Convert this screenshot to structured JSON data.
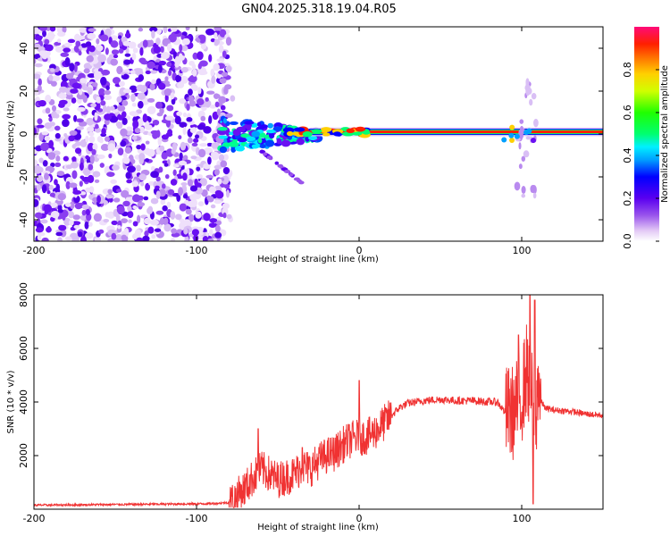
{
  "title": "GN04.2025.318.19.04.R05",
  "chart_data": [
    {
      "type": "heatmap",
      "name": "spectrogram",
      "xlabel": "Height of straight line (km)",
      "ylabel": "Frequency (Hz)",
      "xlim": [
        -200,
        150
      ],
      "ylim": [
        -50,
        50
      ],
      "xticks": [
        -200,
        -100,
        0,
        100
      ],
      "yticks": [
        -40,
        -20,
        0,
        20,
        40
      ],
      "colorbar": {
        "label": "Normalized spectral amplitude",
        "range": [
          0,
          1
        ],
        "ticks": [
          0.0,
          0.2,
          0.4,
          0.6,
          0.8
        ],
        "tick_labels": [
          "0.0",
          "0.2",
          "0.4",
          "0.6",
          "0.8"
        ]
      },
      "features": [
        {
          "region": "noise",
          "x_range": [
            -200,
            -80
          ],
          "frequency_range": [
            -50,
            50
          ],
          "amplitude": "low (0.1-0.3)"
        },
        {
          "region": "transition",
          "x_range": [
            -80,
            -30
          ],
          "center_frequency": 0,
          "spread_hz": 8,
          "amplitude": "0.2-0.5"
        },
        {
          "region": "main tone",
          "x_range": [
            -30,
            150
          ],
          "center_frequency": 1,
          "amplitude": "0.8-1.0"
        },
        {
          "region": "disturbance",
          "x_range": [
            95,
            110
          ],
          "frequency_range": [
            -30,
            25
          ]
        }
      ]
    },
    {
      "type": "line",
      "name": "snr",
      "xlabel": "Height of straight line (km)",
      "ylabel": "SNR (10 * v/v)",
      "xlim": [
        -200,
        150
      ],
      "ylim": [
        0,
        8000
      ],
      "xticks": [
        -200,
        -100,
        0,
        100
      ],
      "yticks": [
        2000,
        4000,
        6000,
        8000
      ],
      "series": [
        {
          "name": "SNR",
          "color": "#f03232",
          "x": [
            -200,
            -180,
            -160,
            -140,
            -120,
            -100,
            -90,
            -80,
            -75,
            -70,
            -65,
            -60,
            -55,
            -50,
            -45,
            -40,
            -35,
            -30,
            -25,
            -20,
            -15,
            -10,
            -5,
            0,
            5,
            10,
            15,
            20,
            25,
            30,
            40,
            50,
            60,
            70,
            80,
            85,
            90,
            95,
            100,
            103,
            106,
            108,
            110,
            112,
            115,
            120,
            130,
            140,
            150
          ],
          "y": [
            150,
            160,
            170,
            180,
            190,
            200,
            210,
            250,
            500,
            800,
            1200,
            1500,
            1300,
            1100,
            1200,
            1300,
            1600,
            1500,
            1800,
            2000,
            2100,
            2400,
            2600,
            2700,
            2700,
            2900,
            3200,
            3500,
            3800,
            3950,
            4050,
            4100,
            4050,
            4050,
            4000,
            4000,
            3600,
            3600,
            4200,
            5200,
            4500,
            1500,
            5000,
            4000,
            3750,
            3700,
            3650,
            3550,
            3500
          ],
          "spikes": [
            {
              "x": -62,
              "y": 3000
            },
            {
              "x": 0,
              "y": 4800
            },
            {
              "x": -35,
              "y": 2300
            },
            {
              "x": 98,
              "y": 6500
            },
            {
              "x": 105,
              "y": 8000
            },
            {
              "x": 108,
              "y": 7800
            },
            {
              "x": 107,
              "y": 200
            }
          ]
        }
      ]
    }
  ]
}
